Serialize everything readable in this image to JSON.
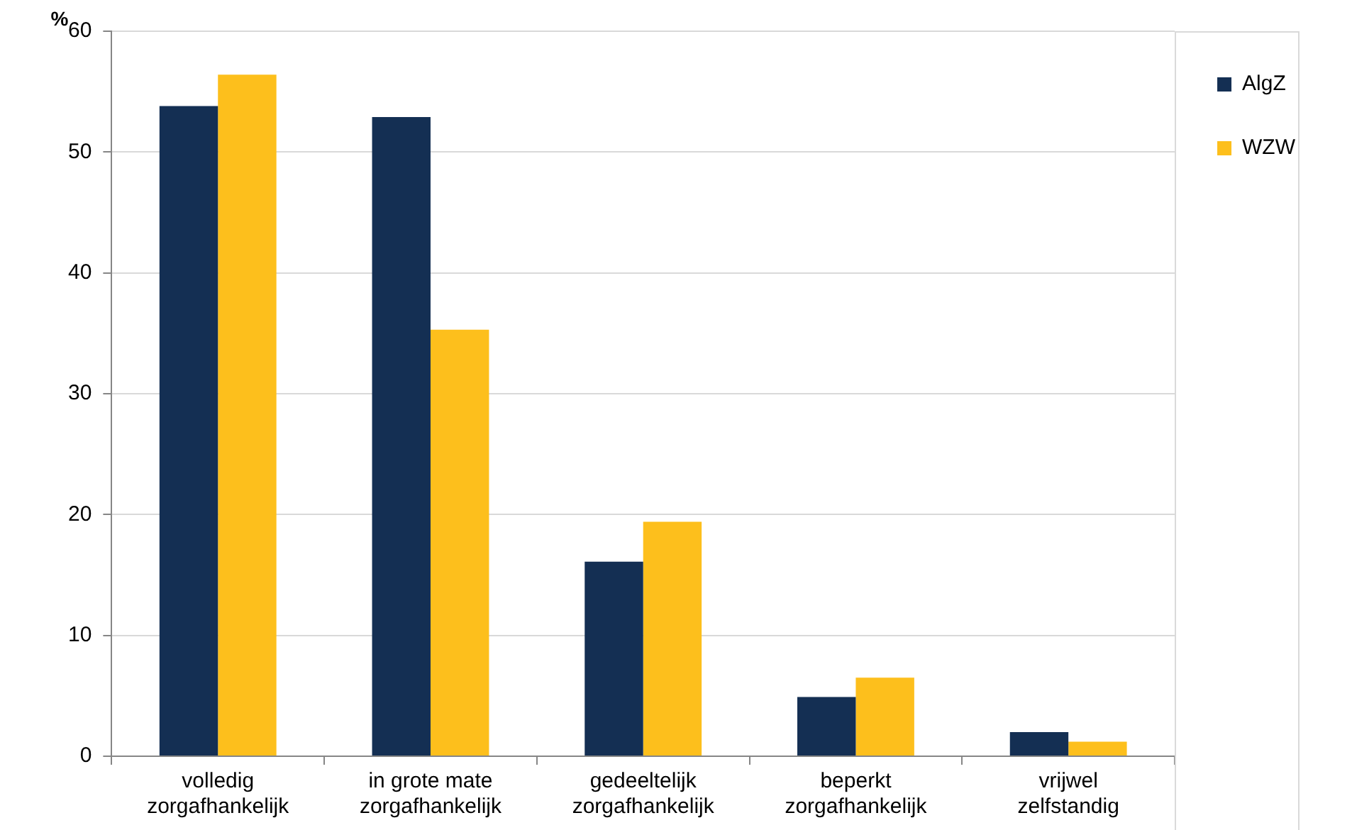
{
  "chart_data": {
    "type": "bar",
    "ylabel": "%",
    "categories": [
      "volledig zorgafhankelijk",
      "in grote mate zorgafhankelijk",
      "gedeeltelijk zorgafhankelijk",
      "beperkt zorgafhankelijk",
      "vrijwel zelfstandig"
    ],
    "series": [
      {
        "name": "AlgZ",
        "color": "#142f53",
        "values": [
          53.8,
          52.9,
          16.1,
          4.9,
          2.0
        ]
      },
      {
        "name": "WZW",
        "color": "#fdbf1c",
        "values": [
          56.4,
          35.3,
          19.4,
          6.5,
          1.2
        ]
      }
    ],
    "ylim": [
      0,
      60
    ],
    "yticks": [
      0,
      10,
      20,
      30,
      40,
      50,
      60
    ],
    "grid": "y",
    "legend": "top right"
  }
}
